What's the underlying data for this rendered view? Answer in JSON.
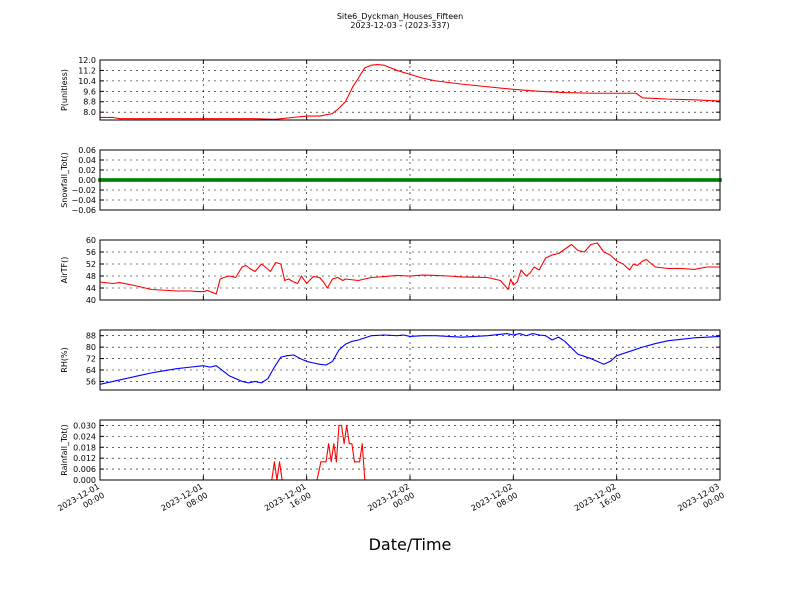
{
  "figure": {
    "title": "Site6_Dyckman_Houses_Fifteen",
    "subtitle": "2023-12-03 - (2023-337)",
    "xlabel": "Date/Time"
  },
  "x_axis": {
    "ticks": [
      0,
      8,
      16,
      24,
      32,
      40,
      48
    ],
    "tick_labels": [
      [
        "2023-12-01",
        "00:00"
      ],
      [
        "2023-12-01",
        "08:00"
      ],
      [
        "2023-12-01",
        "16:00"
      ],
      [
        "2023-12-02",
        "00:00"
      ],
      [
        "2023-12-02",
        "08:00"
      ],
      [
        "2023-12-02",
        "16:00"
      ],
      [
        "2023-12-03",
        "00:00"
      ]
    ],
    "range": [
      0,
      48
    ],
    "unit": "hours since 2023-12-01 00:00"
  },
  "chart_data": [
    {
      "type": "line",
      "ylabel": "P(unitless)",
      "ylim": [
        7.4,
        12.0
      ],
      "yticks": [
        8.0,
        8.8,
        9.6,
        10.4,
        11.2,
        12.0
      ],
      "ytick_labels": [
        "8.0",
        "8.8",
        "9.6",
        "10.4",
        "11.2",
        "12.0"
      ],
      "grid": true,
      "series": [
        {
          "color": "#ff0000",
          "x": [
            0,
            1,
            1.5,
            3,
            6,
            10,
            11,
            12,
            13.5,
            14,
            15,
            16,
            17,
            17.5,
            18,
            18.5,
            19,
            19.3,
            19.6,
            20,
            20.5,
            21,
            21.5,
            22,
            23,
            24,
            25,
            26,
            28,
            30,
            32,
            34,
            36,
            38,
            40,
            40.5,
            41,
            41.5,
            42,
            44,
            46,
            48
          ],
          "y": [
            7.6,
            7.6,
            7.5,
            7.5,
            7.5,
            7.5,
            7.5,
            7.5,
            7.45,
            7.5,
            7.6,
            7.7,
            7.7,
            7.8,
            7.9,
            8.3,
            8.8,
            9.4,
            10.0,
            10.6,
            11.4,
            11.6,
            11.65,
            11.6,
            11.2,
            10.9,
            10.6,
            10.4,
            10.15,
            9.95,
            9.75,
            9.6,
            9.5,
            9.45,
            9.45,
            9.45,
            9.45,
            9.45,
            9.1,
            9.0,
            8.95,
            8.85
          ]
        }
      ]
    },
    {
      "type": "scatter",
      "ylabel": "Snowfall_Tot()",
      "ylim": [
        -0.06,
        0.06
      ],
      "yticks": [
        -0.06,
        -0.04,
        -0.02,
        0.0,
        0.02,
        0.04,
        0.06
      ],
      "ytick_labels": [
        "−0.06",
        "−0.04",
        "−0.02",
        "0.00",
        "0.02",
        "0.04",
        "0.06"
      ],
      "grid": true,
      "series": [
        {
          "color": "#008000",
          "marker": "dense-markers",
          "x_start": 0,
          "x_end": 48,
          "x_step": 0.25,
          "value": 0.0
        }
      ]
    },
    {
      "type": "line",
      "ylabel": "AirTF()",
      "ylim": [
        40,
        60
      ],
      "yticks": [
        40,
        44,
        48,
        52,
        56,
        60
      ],
      "ytick_labels": [
        "40",
        "44",
        "48",
        "52",
        "56",
        "60"
      ],
      "grid": true,
      "series": [
        {
          "color": "#ff0000",
          "x": [
            0,
            1,
            1.5,
            2.5,
            3,
            4,
            6,
            7,
            7.5,
            8,
            8.1,
            8.3,
            9,
            9.3,
            9.6,
            10,
            10.5,
            11,
            11.3,
            11.6,
            12,
            12.5,
            12.8,
            13.2,
            13.6,
            14,
            14.3,
            14.6,
            15,
            15.3,
            15.6,
            16,
            16.5,
            17,
            17.3,
            17.6,
            18,
            18.4,
            18.8,
            19,
            20,
            21,
            22,
            23,
            24,
            25,
            26,
            27,
            28,
            29,
            30,
            31,
            31.3,
            31.6,
            31.8,
            32,
            32.3,
            32.6,
            33,
            33.3,
            33.6,
            34,
            34.5,
            35,
            35.5,
            36,
            36.5,
            37,
            37.5,
            38,
            38.5,
            39,
            39.5,
            40,
            40.5,
            41,
            41.3,
            41.6,
            42,
            42.3,
            42.7,
            43,
            44,
            45,
            46,
            47,
            48
          ],
          "y": [
            46,
            45.5,
            45.8,
            45,
            44.5,
            43.5,
            43,
            43,
            42.8,
            42.8,
            42.9,
            43.2,
            42,
            47,
            47.5,
            48,
            47.5,
            51,
            51.5,
            50.5,
            49.5,
            52,
            51,
            49.5,
            52.5,
            52,
            46.5,
            47,
            46,
            45.5,
            48,
            45.5,
            47.8,
            47.5,
            46,
            44,
            47,
            47.5,
            46.5,
            47,
            46.5,
            47.5,
            47.8,
            48.2,
            48,
            48.3,
            48.2,
            48,
            47.7,
            47.6,
            47.5,
            46.5,
            45,
            43.5,
            47,
            45,
            46,
            50,
            48,
            49,
            51,
            50,
            54,
            55,
            55.5,
            57,
            58.5,
            56.5,
            56,
            58.5,
            59,
            56,
            55,
            53,
            52,
            50,
            52,
            51.5,
            53,
            53.5,
            52,
            51,
            50.5,
            50.5,
            50.2,
            51,
            51
          ]
        }
      ]
    },
    {
      "type": "line",
      "ylabel": "RH(%)",
      "ylim": [
        50,
        92
      ],
      "yticks": [
        56,
        64,
        72,
        80,
        88
      ],
      "ytick_labels": [
        "56",
        "64",
        "72",
        "80",
        "88"
      ],
      "grid": true,
      "series": [
        {
          "color": "#0000ff",
          "x": [
            0,
            1,
            2,
            3,
            4,
            5,
            6,
            7,
            8,
            8.5,
            9,
            10,
            11,
            11.5,
            12,
            12.5,
            13,
            13.5,
            14,
            14.5,
            15,
            15.5,
            16,
            16.5,
            17,
            17.5,
            18,
            18.5,
            19,
            19.5,
            20,
            21,
            22,
            23,
            23.5,
            24,
            25,
            26,
            27,
            28,
            29,
            30,
            31,
            31.5,
            32,
            32.5,
            33,
            33.5,
            34,
            34.5,
            35,
            35.5,
            36,
            37,
            38,
            38.5,
            39,
            39.5,
            40,
            41,
            42,
            43,
            44,
            45,
            46,
            47,
            48
          ],
          "y": [
            54,
            56,
            58,
            60,
            62,
            63.5,
            65,
            66,
            67,
            66,
            67,
            60,
            56,
            55,
            56,
            55,
            58,
            66,
            73,
            74,
            74.5,
            72,
            70,
            69,
            68,
            67.5,
            70,
            78,
            82,
            84,
            85,
            88,
            88.5,
            88,
            88.5,
            87.5,
            88,
            88,
            87.5,
            87,
            87.5,
            88,
            89,
            89.5,
            88.5,
            89.5,
            88,
            89.5,
            88.5,
            88,
            85,
            87,
            84,
            75,
            72,
            70,
            68,
            70,
            74,
            77,
            80,
            82.5,
            84.5,
            85.5,
            86.5,
            87,
            87.5
          ]
        }
      ]
    },
    {
      "type": "line",
      "ylabel": "Rainfall_Tot()",
      "ylim": [
        0.0,
        0.033
      ],
      "yticks": [
        0.0,
        0.006,
        0.012,
        0.018,
        0.024,
        0.03
      ],
      "ytick_labels": [
        "0.000",
        "0.006",
        "0.012",
        "0.018",
        "0.024",
        "0.030"
      ],
      "grid": true,
      "series": [
        {
          "color": "#ff0000",
          "x": [
            0,
            13.3,
            13.5,
            13.7,
            13.9,
            14.1,
            16.8,
            17.1,
            17.5,
            17.7,
            17.9,
            18.1,
            18.3,
            18.5,
            18.7,
            18.9,
            19.1,
            19.3,
            19.5,
            19.7,
            19.9,
            20.1,
            20.3,
            20.5,
            20.7,
            20.9,
            21.1,
            48
          ],
          "y": [
            0,
            0,
            0.01,
            0,
            0.01,
            0,
            0,
            0.01,
            0.01,
            0.02,
            0.01,
            0.02,
            0.01,
            0.03,
            0.03,
            0.02,
            0.03,
            0.02,
            0.02,
            0.01,
            0.01,
            0.01,
            0.02,
            0,
            0,
            0,
            0,
            0
          ]
        }
      ]
    }
  ]
}
